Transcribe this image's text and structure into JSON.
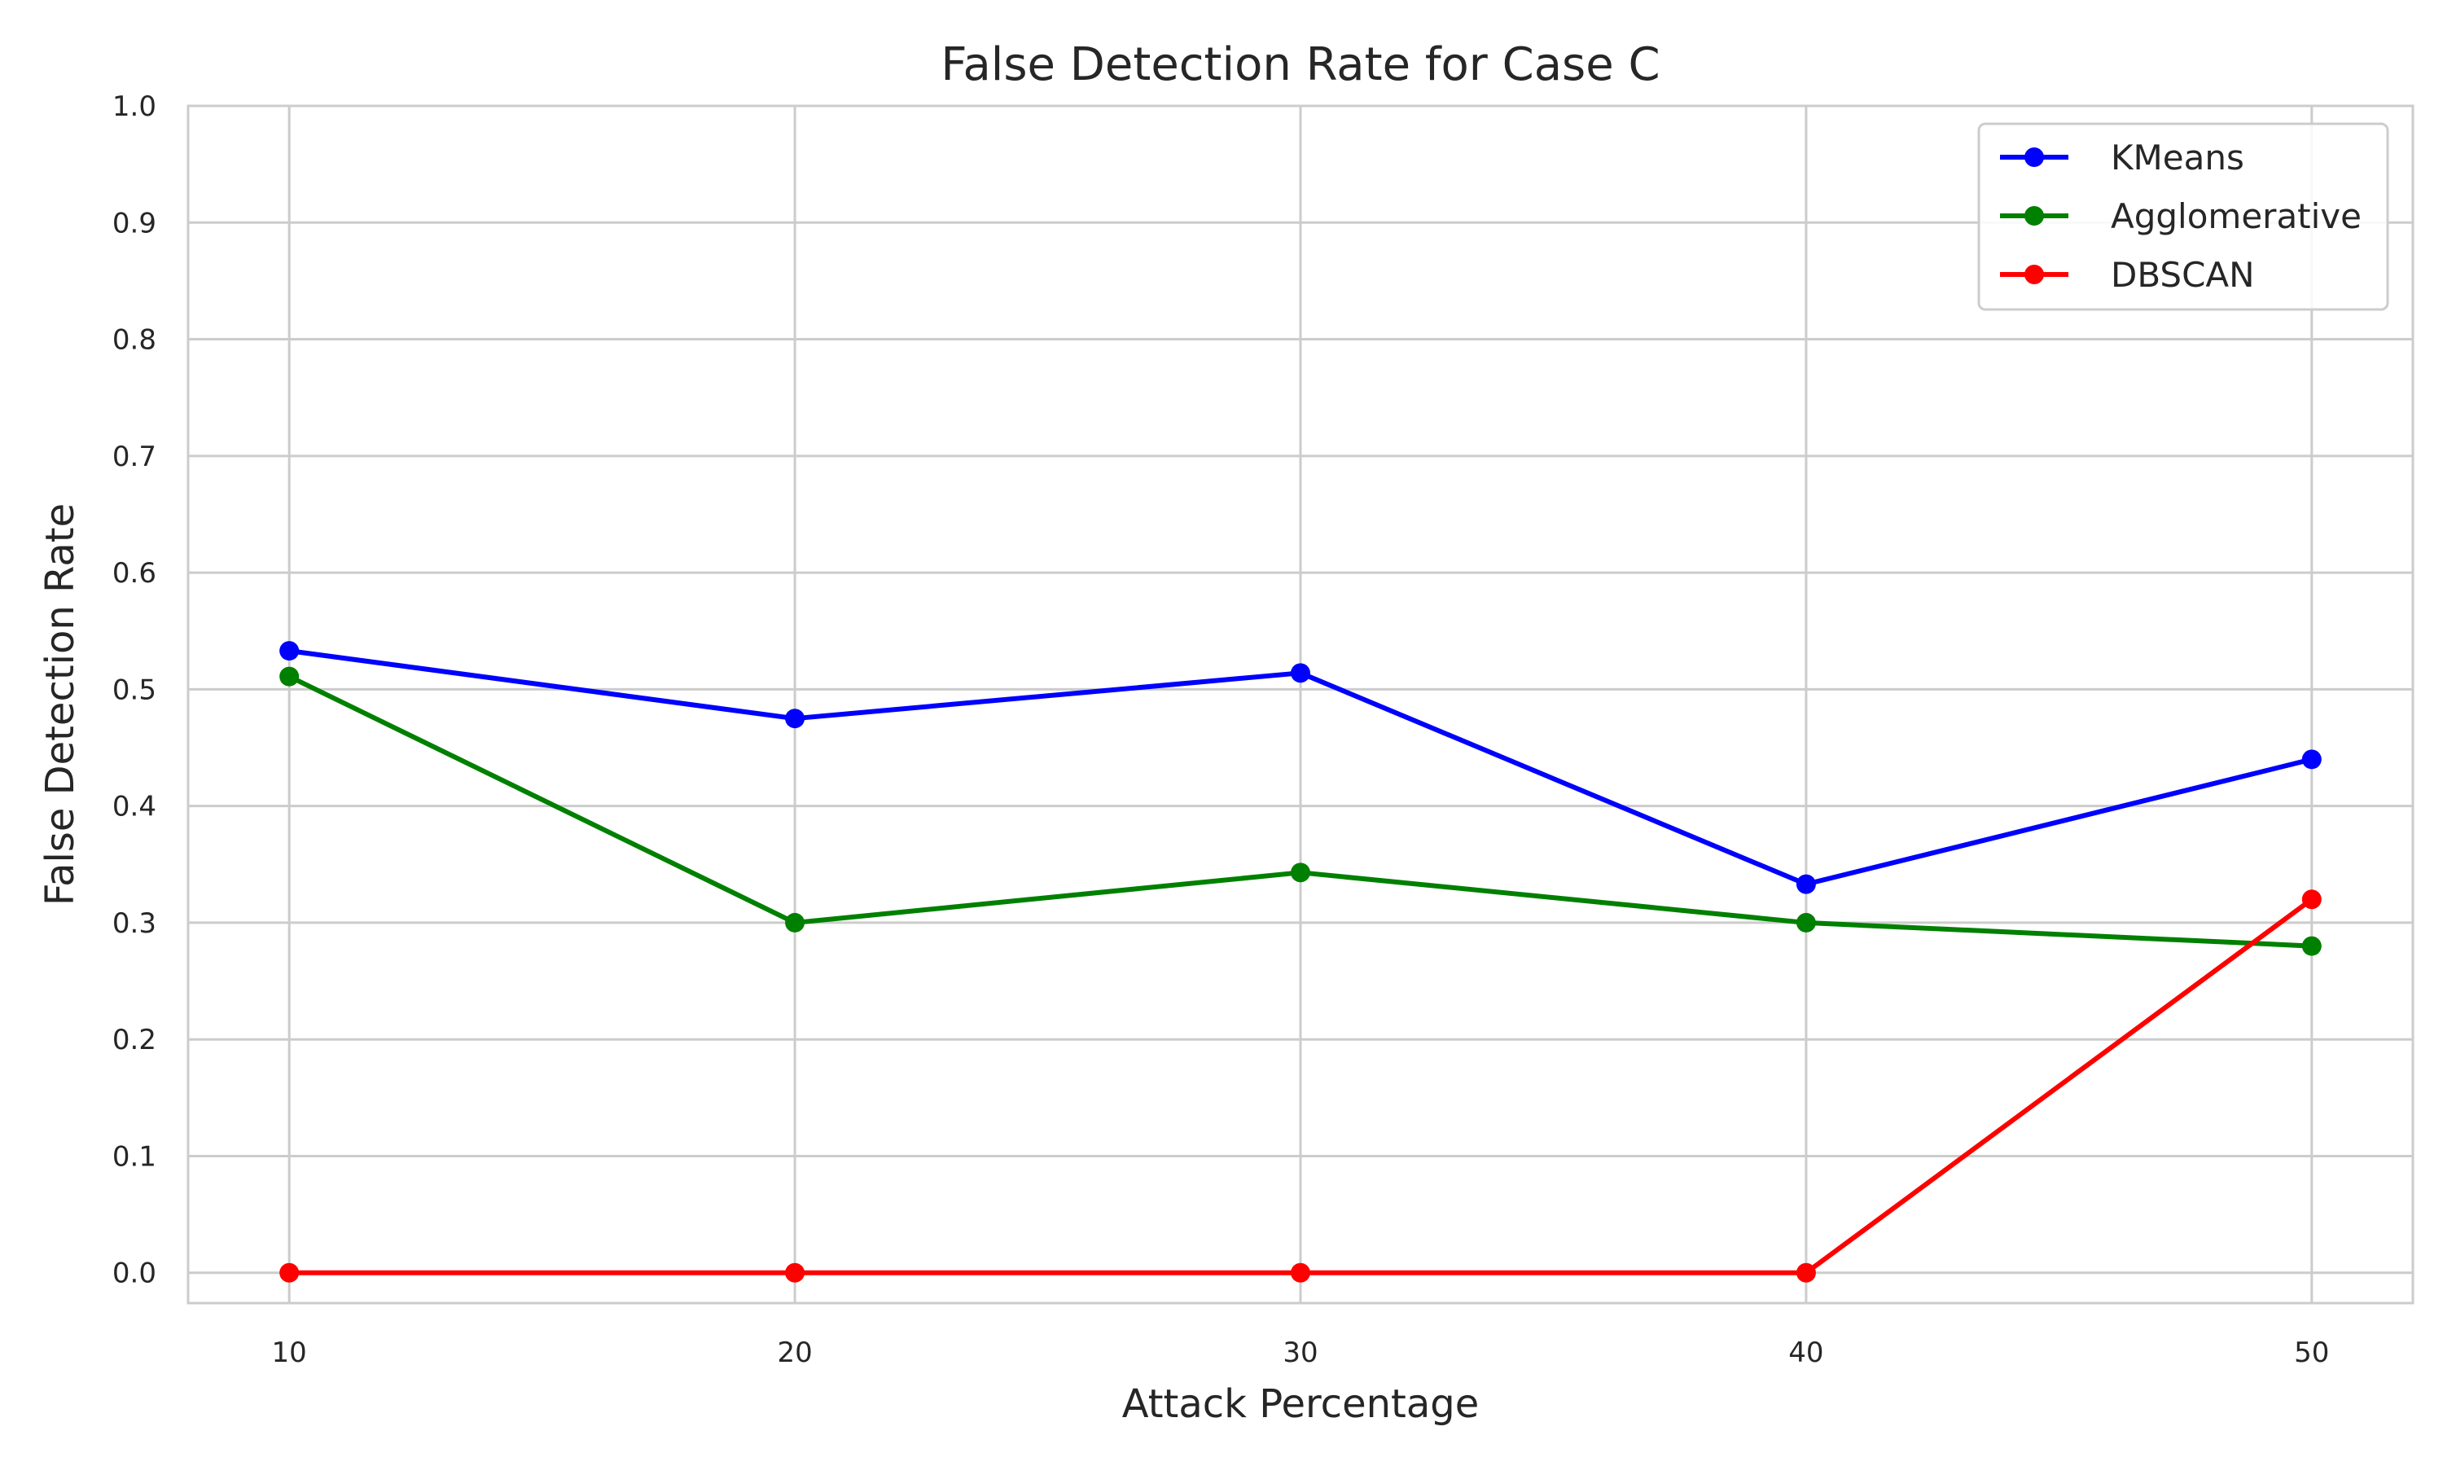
{
  "chart_data": {
    "type": "line",
    "title": "False Detection Rate for Case C",
    "xlabel": "Attack Percentage",
    "ylabel": "False Detection Rate",
    "x": [
      10,
      20,
      30,
      40,
      50
    ],
    "xticks": [
      10,
      20,
      30,
      40,
      50
    ],
    "xlim": [
      8,
      52
    ],
    "ylim": [
      -0.026,
      1.0
    ],
    "yticks": [
      "0.0",
      "0.1",
      "0.2",
      "0.3",
      "0.4",
      "0.5",
      "0.6",
      "0.7",
      "0.8",
      "0.9",
      "1.0"
    ],
    "grid": true,
    "legend_position": "top-right",
    "series": [
      {
        "name": "KMeans",
        "color": "#0000ff",
        "values": [
          0.533,
          0.475,
          0.514,
          0.333,
          0.44
        ]
      },
      {
        "name": "Agglomerative",
        "color": "#008000",
        "values": [
          0.511,
          0.3,
          0.343,
          0.3,
          0.28
        ]
      },
      {
        "name": "DBSCAN",
        "color": "#ff0000",
        "values": [
          0.0,
          0.0,
          0.0,
          0.0,
          0.32
        ]
      }
    ]
  }
}
